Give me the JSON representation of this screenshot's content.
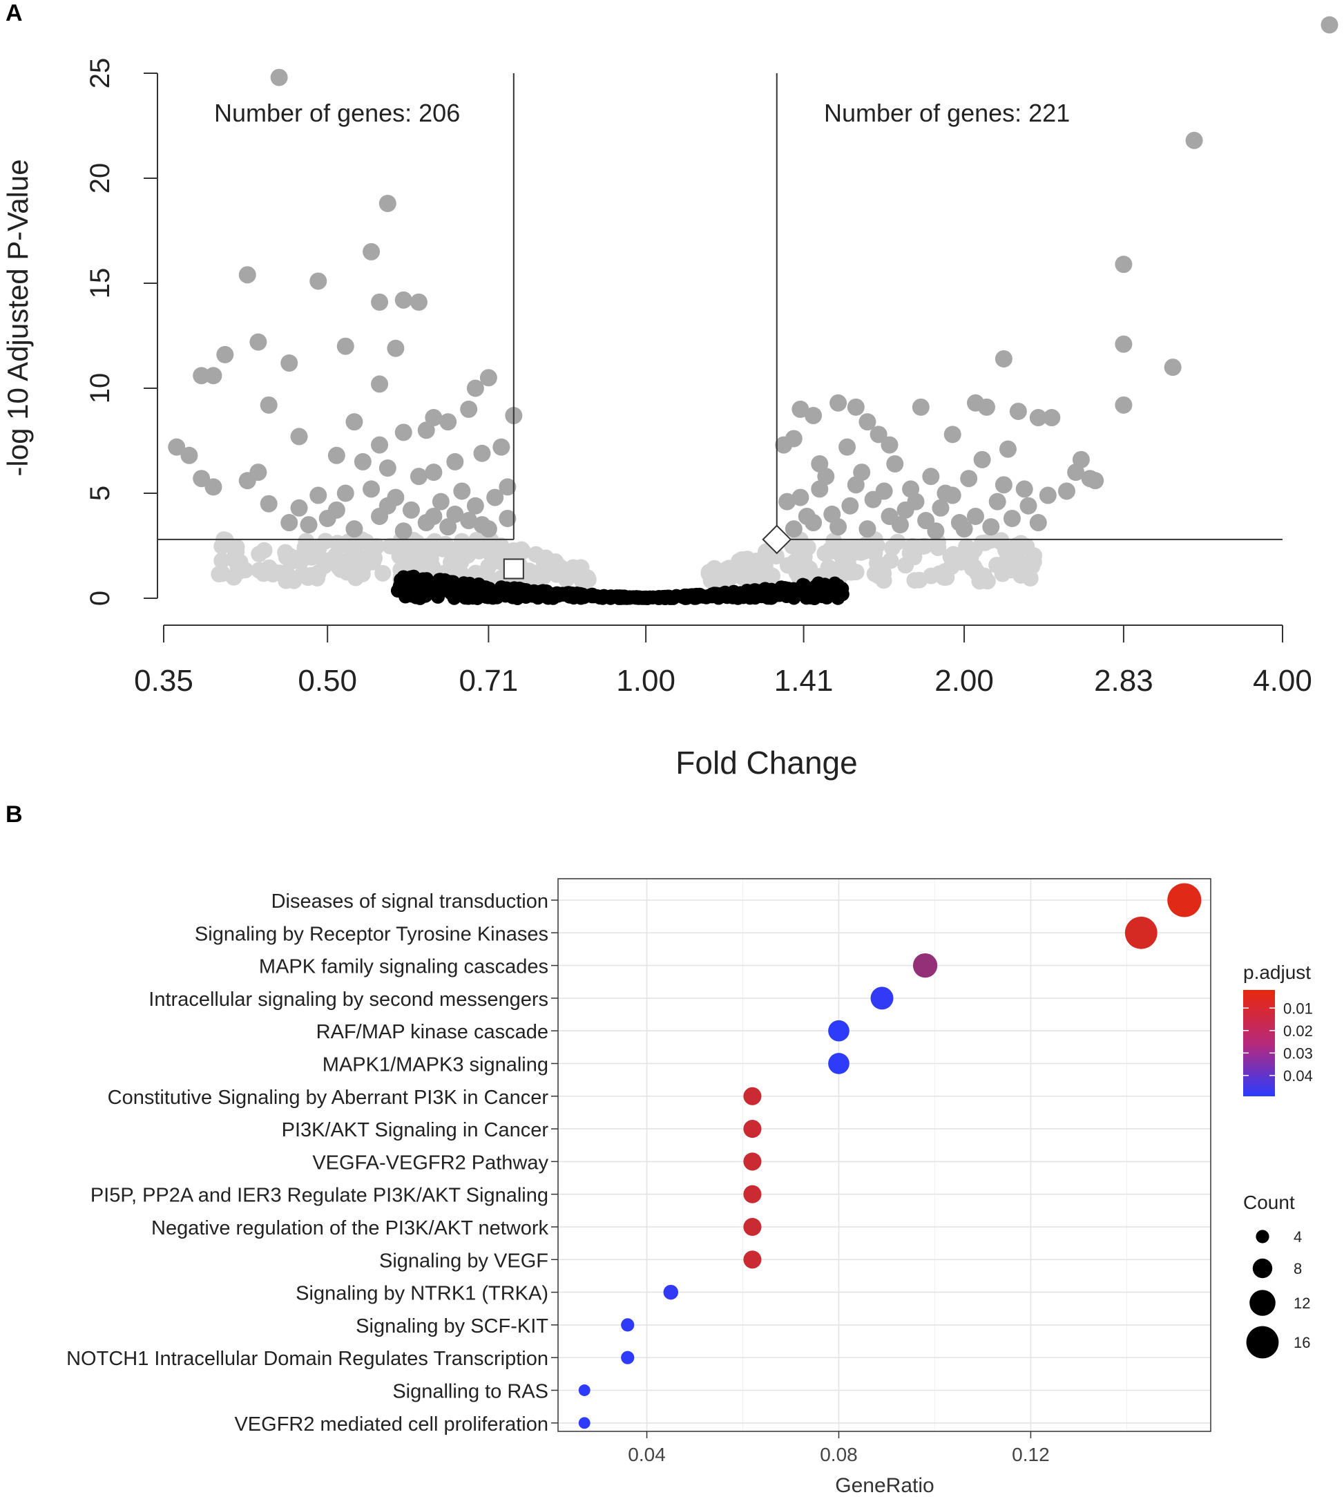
{
  "panels": {
    "a_label": "A",
    "b_label": "B"
  },
  "chart_data": [
    {
      "type": "scatter",
      "subtype": "volcano",
      "xlabel": "Fold Change",
      "ylabel": "-log 10 Adjusted P-Value",
      "x_scale": "log2",
      "x_ticks": [
        0.35,
        0.5,
        0.71,
        1.0,
        1.41,
        2.0,
        2.83,
        4.0
      ],
      "x_tick_labels": [
        "0.35",
        "0.50",
        "0.71",
        "1.00",
        "1.41",
        "2.00",
        "2.83",
        "4.00"
      ],
      "y_ticks": [
        0,
        5,
        10,
        15,
        20,
        25
      ],
      "y_tick_labels": [
        "0",
        "5",
        "10",
        "15",
        "20",
        "25"
      ],
      "ylim": [
        0,
        25
      ],
      "xlim": [
        0.35,
        4.0
      ],
      "thresholds": {
        "fold_change_down": 0.75,
        "fold_change_up": 1.33,
        "neg_log10_padj": 2.8
      },
      "annotations": {
        "left_count": "Number of genes: 206",
        "right_count": "Number of genes: 221"
      },
      "markers": [
        {
          "shape": "square",
          "x": 0.75,
          "y": 1.4
        },
        {
          "shape": "diamond",
          "x": 1.33,
          "y": 2.8
        }
      ],
      "colors": {
        "significant": "#a6a6a6",
        "intermediate": "#d3d3d3",
        "nonsignificant": "#000000"
      },
      "significant_points": [
        [
          0.45,
          24.8
        ],
        [
          0.57,
          18.8
        ],
        [
          0.55,
          16.5
        ],
        [
          0.42,
          15.4
        ],
        [
          0.49,
          15.1
        ],
        [
          0.56,
          14.1
        ],
        [
          0.59,
          14.2
        ],
        [
          0.61,
          14.1
        ],
        [
          0.43,
          12.2
        ],
        [
          0.58,
          11.9
        ],
        [
          0.52,
          12.0
        ],
        [
          0.4,
          11.6
        ],
        [
          0.38,
          10.6
        ],
        [
          0.39,
          10.6
        ],
        [
          0.46,
          11.2
        ],
        [
          0.56,
          10.2
        ],
        [
          0.71,
          10.5
        ],
        [
          0.69,
          10.0
        ],
        [
          0.44,
          9.2
        ],
        [
          0.63,
          8.6
        ],
        [
          0.65,
          8.4
        ],
        [
          0.68,
          9.0
        ],
        [
          0.53,
          8.4
        ],
        [
          0.47,
          7.7
        ],
        [
          0.36,
          7.2
        ],
        [
          0.37,
          6.8
        ],
        [
          0.59,
          7.9
        ],
        [
          0.62,
          8.0
        ],
        [
          0.56,
          7.3
        ],
        [
          0.51,
          6.8
        ],
        [
          0.73,
          7.2
        ],
        [
          0.75,
          8.7
        ],
        [
          0.66,
          6.5
        ],
        [
          0.7,
          6.9
        ],
        [
          0.42,
          5.6
        ],
        [
          0.43,
          6.0
        ],
        [
          0.38,
          5.7
        ],
        [
          0.39,
          5.3
        ],
        [
          0.54,
          6.5
        ],
        [
          0.57,
          6.2
        ],
        [
          0.61,
          5.8
        ],
        [
          0.63,
          6.0
        ],
        [
          0.44,
          4.5
        ],
        [
          0.47,
          4.3
        ],
        [
          0.49,
          4.9
        ],
        [
          0.52,
          5.0
        ],
        [
          0.55,
          5.2
        ],
        [
          0.58,
          4.8
        ],
        [
          0.6,
          4.2
        ],
        [
          0.64,
          4.6
        ],
        [
          0.67,
          5.1
        ],
        [
          0.69,
          4.4
        ],
        [
          0.72,
          4.8
        ],
        [
          0.74,
          5.3
        ],
        [
          0.46,
          3.6
        ],
        [
          0.48,
          3.5
        ],
        [
          0.5,
          3.8
        ],
        [
          0.53,
          3.3
        ],
        [
          0.56,
          3.9
        ],
        [
          0.59,
          3.2
        ],
        [
          0.62,
          3.6
        ],
        [
          0.65,
          3.4
        ],
        [
          0.68,
          3.7
        ],
        [
          0.71,
          3.3
        ],
        [
          0.74,
          3.8
        ],
        [
          0.51,
          4.2
        ],
        [
          0.57,
          4.4
        ],
        [
          0.66,
          4.0
        ],
        [
          0.7,
          3.5
        ],
        [
          0.63,
          3.9
        ],
        [
          3.3,
          21.8
        ],
        [
          2.83,
          15.9
        ],
        [
          2.83,
          12.1
        ],
        [
          3.15,
          11.0
        ],
        [
          2.83,
          9.2
        ],
        [
          2.18,
          11.4
        ],
        [
          1.4,
          9.0
        ],
        [
          1.44,
          8.7
        ],
        [
          1.52,
          9.3
        ],
        [
          1.58,
          9.1
        ],
        [
          1.62,
          8.4
        ],
        [
          1.66,
          7.8
        ],
        [
          1.7,
          7.3
        ],
        [
          1.82,
          9.1
        ],
        [
          1.95,
          7.8
        ],
        [
          2.05,
          9.3
        ],
        [
          2.1,
          9.1
        ],
        [
          2.25,
          8.9
        ],
        [
          2.35,
          8.6
        ],
        [
          2.42,
          8.6
        ],
        [
          2.58,
          6.6
        ],
        [
          2.63,
          5.7
        ],
        [
          2.2,
          7.1
        ],
        [
          2.08,
          6.6
        ],
        [
          1.35,
          7.3
        ],
        [
          1.38,
          7.6
        ],
        [
          1.46,
          6.4
        ],
        [
          1.55,
          7.2
        ],
        [
          1.6,
          6.0
        ],
        [
          1.72,
          6.4
        ],
        [
          1.78,
          5.2
        ],
        [
          1.86,
          5.8
        ],
        [
          1.92,
          5.0
        ],
        [
          2.02,
          5.7
        ],
        [
          2.15,
          4.6
        ],
        [
          2.28,
          5.2
        ],
        [
          2.4,
          4.9
        ],
        [
          2.5,
          5.1
        ],
        [
          2.55,
          6.0
        ],
        [
          2.66,
          5.6
        ],
        [
          2.3,
          4.4
        ],
        [
          1.36,
          4.6
        ],
        [
          1.4,
          4.8
        ],
        [
          1.46,
          5.2
        ],
        [
          1.5,
          4.0
        ],
        [
          1.56,
          4.4
        ],
        [
          1.64,
          4.7
        ],
        [
          1.7,
          3.9
        ],
        [
          1.76,
          4.2
        ],
        [
          1.84,
          3.7
        ],
        [
          1.9,
          4.3
        ],
        [
          1.98,
          3.6
        ],
        [
          2.05,
          3.9
        ],
        [
          2.12,
          3.4
        ],
        [
          2.22,
          3.8
        ],
        [
          2.35,
          3.6
        ],
        [
          1.38,
          3.3
        ],
        [
          1.44,
          3.6
        ],
        [
          1.52,
          3.4
        ],
        [
          1.62,
          3.3
        ],
        [
          1.74,
          3.5
        ],
        [
          1.88,
          3.2
        ],
        [
          2.0,
          3.3
        ],
        [
          1.58,
          5.4
        ],
        [
          1.68,
          5.1
        ],
        [
          1.8,
          4.6
        ],
        [
          1.95,
          4.9
        ],
        [
          2.18,
          5.4
        ],
        [
          1.48,
          5.8
        ],
        [
          1.42,
          3.9
        ]
      ]
    },
    {
      "type": "scatter",
      "subtype": "dotplot",
      "xlabel": "GeneRatio",
      "ylabel": "",
      "xlim": [
        0.0215,
        0.1575
      ],
      "x_ticks": [
        0.04,
        0.08,
        0.12
      ],
      "x_tick_labels": [
        "0.04",
        "0.08",
        "0.12"
      ],
      "categories": [
        "Diseases of signal transduction",
        "Signaling by Receptor Tyrosine Kinases",
        "MAPK family signaling cascades",
        "Intracellular signaling by second messengers",
        "RAF/MAP kinase cascade",
        "MAPK1/MAPK3 signaling",
        "Constitutive Signaling by Aberrant PI3K in Cancer",
        "PI3K/AKT Signaling in Cancer",
        "VEGFA-VEGFR2 Pathway",
        "PI5P, PP2A and IER3 Regulate PI3K/AKT Signaling",
        "Negative regulation of the PI3K/AKT network",
        "Signaling by VEGF",
        "Signaling by NTRK1 (TRKA)",
        "Signaling by SCF-KIT",
        "NOTCH1 Intracellular Domain Regulates Transcription",
        "Signalling to RAS",
        "VEGFR2 mediated cell proliferation"
      ],
      "gene_ratio": [
        0.152,
        0.143,
        0.098,
        0.089,
        0.08,
        0.08,
        0.062,
        0.062,
        0.062,
        0.062,
        0.062,
        0.062,
        0.045,
        0.036,
        0.036,
        0.027,
        0.027
      ],
      "count": [
        17,
        16,
        11,
        10,
        9,
        9,
        7,
        7,
        7,
        7,
        7,
        7,
        5,
        4,
        4,
        3,
        3
      ],
      "p_adjust": [
        0.002,
        0.005,
        0.022,
        0.048,
        0.049,
        0.049,
        0.008,
        0.008,
        0.008,
        0.008,
        0.008,
        0.008,
        0.048,
        0.049,
        0.049,
        0.049,
        0.049
      ],
      "color_legend": {
        "title": "p.adjust",
        "ticks": [
          0.01,
          0.02,
          0.03,
          0.04
        ],
        "tick_labels": [
          "0.01",
          "0.02",
          "0.03",
          "0.04"
        ],
        "range": [
          0.0,
          0.05
        ],
        "low_color": "#e8280c",
        "high_color": "#2a3bff"
      },
      "size_legend": {
        "title": "Count",
        "values": [
          4,
          8,
          12,
          16
        ],
        "labels": [
          "4",
          "8",
          "12",
          "16"
        ]
      }
    }
  ]
}
